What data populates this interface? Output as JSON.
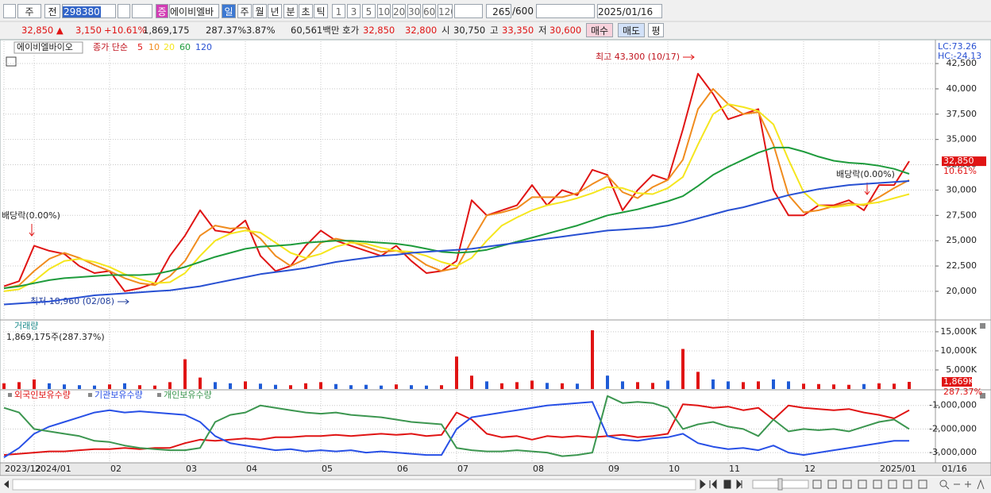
{
  "toolbar": {
    "market": "주",
    "prev": "전",
    "code": "298380",
    "badge": "증",
    "name": "에이비엘바",
    "periods": [
      "일",
      "주",
      "월",
      "년",
      "분",
      "초",
      "틱"
    ],
    "intervals": [
      "1",
      "3",
      "5",
      "10",
      "20",
      "30",
      "60",
      "120"
    ],
    "count": "265",
    "count_max": "/600",
    "date": "2025/01/16"
  },
  "quote": {
    "price": "32,850 ▲",
    "change": "3,150",
    "change_pct": "+10.61%",
    "volume": "1,869,175",
    "volume_pct": "287.37%",
    "turnover_pct": "3.87%",
    "amount": "60,561백만",
    "hoga_label": "호가",
    "ask": "32,850",
    "bid": "32,800",
    "open_label": "시",
    "open": "30,750",
    "high_label": "고",
    "high": "33,350",
    "low_label": "저",
    "low": "30,600",
    "buy": "매수",
    "sell": "매도",
    "avg": "평"
  },
  "chart_data": [
    {
      "type": "line",
      "stock_name": "에이비엘바이오",
      "ma_label": "종가 단순",
      "categories": [
        "2023/12",
        null,
        "2024/01",
        null,
        null,
        null,
        null,
        "02",
        null,
        null,
        null,
        null,
        "03",
        null,
        null,
        null,
        "04",
        null,
        null,
        null,
        null,
        "05",
        null,
        null,
        null,
        null,
        "06",
        null,
        null,
        null,
        "07",
        null,
        null,
        null,
        null,
        "08",
        null,
        null,
        null,
        null,
        "09",
        null,
        null,
        null,
        "10",
        null,
        null,
        null,
        "11",
        null,
        null,
        null,
        null,
        "12",
        null,
        null,
        null,
        null,
        "2025/01",
        null,
        null
      ],
      "last_date": "01/16",
      "series": [
        {
          "name": "5",
          "color": "#e01414",
          "values": [
            20500,
            21000,
            24500,
            24000,
            23700,
            22500,
            21800,
            22000,
            20000,
            20300,
            20800,
            23500,
            25500,
            28000,
            26000,
            25800,
            27000,
            23500,
            22000,
            22500,
            24500,
            26000,
            25000,
            24500,
            24000,
            23500,
            24500,
            23000,
            21800,
            22000,
            23000,
            29000,
            27500,
            28000,
            28500,
            30500,
            28500,
            30000,
            29500,
            32000,
            31500,
            28000,
            30000,
            31500,
            31000,
            36000,
            41500,
            39500,
            37000,
            37500,
            38000,
            30000,
            27500,
            27500,
            28500,
            28500,
            29000,
            28000,
            30500,
            30500,
            32850
          ]
        },
        {
          "name": "10",
          "color": "#f08c1e",
          "values": [
            20300,
            20600,
            22000,
            23200,
            23800,
            23300,
            22600,
            22000,
            21300,
            20800,
            20600,
            21500,
            23000,
            25500,
            26500,
            26200,
            26300,
            25200,
            23500,
            22500,
            23200,
            24800,
            25200,
            24900,
            24400,
            23900,
            24000,
            23600,
            22600,
            22000,
            22300,
            25000,
            27500,
            27800,
            28200,
            29300,
            29300,
            29300,
            29700,
            30600,
            31400,
            29800,
            29200,
            30300,
            31000,
            33000,
            38000,
            40000,
            38500,
            37500,
            37700,
            34500,
            29500,
            27800,
            28000,
            28400,
            28700,
            28500,
            29300,
            30200,
            31000
          ]
        },
        {
          "name": "20",
          "color": "#f5e61e",
          "values": [
            20000,
            20200,
            21000,
            22200,
            23000,
            23200,
            22900,
            22400,
            21700,
            21200,
            20800,
            20900,
            21800,
            23500,
            25000,
            25700,
            26000,
            25800,
            24800,
            23800,
            23300,
            23700,
            24400,
            24800,
            24700,
            24300,
            24000,
            23900,
            23500,
            22900,
            22500,
            23300,
            25000,
            26500,
            27300,
            28000,
            28500,
            28800,
            29200,
            29700,
            30300,
            30200,
            29700,
            29600,
            30200,
            31300,
            34500,
            37500,
            38500,
            38200,
            37800,
            36500,
            33000,
            29800,
            28500,
            28300,
            28500,
            28600,
            28800,
            29200,
            29600
          ]
        },
        {
          "name": "60",
          "color": "#1e9b3c",
          "values": [
            20300,
            20500,
            20800,
            21100,
            21300,
            21400,
            21500,
            21600,
            21600,
            21600,
            21700,
            22000,
            22400,
            22900,
            23400,
            23800,
            24200,
            24400,
            24500,
            24600,
            24800,
            24900,
            25000,
            25000,
            24900,
            24800,
            24700,
            24500,
            24200,
            23900,
            23800,
            23900,
            24100,
            24500,
            24900,
            25300,
            25700,
            26100,
            26500,
            27000,
            27500,
            27800,
            28100,
            28500,
            28900,
            29400,
            30400,
            31500,
            32300,
            33000,
            33700,
            34200,
            34200,
            33800,
            33300,
            32900,
            32700,
            32600,
            32400,
            32100,
            31600
          ]
        },
        {
          "name": "120",
          "color": "#2850d2",
          "values": [
            18700,
            18800,
            18900,
            19000,
            19200,
            19400,
            19600,
            19700,
            19800,
            19900,
            20000,
            20100,
            20300,
            20500,
            20800,
            21100,
            21400,
            21700,
            21900,
            22100,
            22300,
            22600,
            22900,
            23100,
            23300,
            23500,
            23600,
            23800,
            23900,
            24000,
            24100,
            24200,
            24400,
            24600,
            24800,
            25000,
            25200,
            25400,
            25600,
            25800,
            26000,
            26100,
            26200,
            26300,
            26500,
            26800,
            27200,
            27600,
            28000,
            28300,
            28700,
            29100,
            29500,
            29800,
            30100,
            30300,
            30500,
            30600,
            30700,
            30800,
            30900
          ]
        }
      ],
      "ylim": [
        17250,
        44700
      ],
      "yticks": [
        {
          "value": 20000,
          "label": "20,000"
        },
        {
          "value": 22500,
          "label": "22,500"
        },
        {
          "value": 25000,
          "label": "25,000"
        },
        {
          "value": 27500,
          "label": "27,500"
        },
        {
          "value": 30000,
          "label": "30,000"
        },
        {
          "value": 32500,
          "label": "32,500"
        },
        {
          "value": 35000,
          "label": "35,000"
        },
        {
          "value": 37500,
          "label": "37,500"
        },
        {
          "value": 40000,
          "label": "40,000"
        },
        {
          "value": 42500,
          "label": "42,500"
        }
      ],
      "grid": true,
      "high_note": "최고 43,300 (10/17)",
      "low_note": "최저 18,960 (02/08)",
      "dividend_notes": [
        "배당락(0.00%)",
        "배당락(0.00%)"
      ],
      "lc": "LC:73.26",
      "hc": "HC:-24.13",
      "last_price_label": "32,850",
      "last_change_label": "10.61%"
    },
    {
      "type": "bar",
      "title": "거래량",
      "subtitle": "1,869,175주(287.37%)",
      "up_color": "#e01414",
      "down_color": "#1f5bd6",
      "values": [
        1500,
        1800,
        2500,
        1500,
        1200,
        1000,
        900,
        1200,
        1500,
        1000,
        900,
        1800,
        7800,
        3000,
        1800,
        1500,
        2000,
        1400,
        1100,
        1000,
        1500,
        1800,
        1300,
        1000,
        1100,
        900,
        1200,
        1000,
        900,
        1000,
        8500,
        3500,
        2000,
        1500,
        1800,
        2200,
        1600,
        1500,
        1400,
        15400,
        3500,
        2000,
        1800,
        1600,
        2200,
        10500,
        4500,
        2500,
        2000,
        1800,
        2000,
        2500,
        2000,
        1400,
        1300,
        1200,
        1100,
        1300,
        1500,
        1400,
        1869
      ],
      "ylim": [
        0,
        17900
      ],
      "yticks": [
        {
          "value": 5000,
          "label": "5,000K"
        },
        {
          "value": 10000,
          "label": "10,000K"
        },
        {
          "value": 15000,
          "label": "15,000K"
        }
      ],
      "grid": true,
      "last_label": "1,869K",
      "last_pct": "287.37%"
    },
    {
      "type": "line",
      "series": [
        {
          "name": "외국인보유수량",
          "color": "#e01414",
          "values": [
            -3100000,
            -3050000,
            -3000000,
            -2950000,
            -2950000,
            -2900000,
            -2850000,
            -2850000,
            -2800000,
            -2850000,
            -2800000,
            -2800000,
            -2600000,
            -2450000,
            -2500000,
            -2450000,
            -2400000,
            -2450000,
            -2350000,
            -2350000,
            -2300000,
            -2300000,
            -2250000,
            -2300000,
            -2250000,
            -2200000,
            -2250000,
            -2200000,
            -2300000,
            -2250000,
            -1300000,
            -1600000,
            -2200000,
            -2350000,
            -2300000,
            -2450000,
            -2300000,
            -2350000,
            -2300000,
            -2350000,
            -2300000,
            -2250000,
            -2350000,
            -2300000,
            -2200000,
            -950000,
            -1000000,
            -1100000,
            -1050000,
            -1200000,
            -1100000,
            -1600000,
            -1000000,
            -1100000,
            -1150000,
            -1200000,
            -1150000,
            -1300000,
            -1400000,
            -1550000,
            -1200000
          ]
        },
        {
          "name": "기관보유수량",
          "color": "#2850e6",
          "values": [
            -3200000,
            -2800000,
            -2200000,
            -1900000,
            -1700000,
            -1500000,
            -1300000,
            -1200000,
            -1300000,
            -1250000,
            -1300000,
            -1350000,
            -1400000,
            -1700000,
            -2300000,
            -2600000,
            -2700000,
            -2800000,
            -2900000,
            -2850000,
            -2950000,
            -2900000,
            -2950000,
            -2900000,
            -3000000,
            -2950000,
            -3000000,
            -3050000,
            -3100000,
            -3100000,
            -2000000,
            -1500000,
            -1400000,
            -1300000,
            -1200000,
            -1100000,
            -1000000,
            -950000,
            -900000,
            -850000,
            -2300000,
            -2450000,
            -2500000,
            -2400000,
            -2350000,
            -2200000,
            -2600000,
            -2750000,
            -2850000,
            -2800000,
            -2900000,
            -2700000,
            -3000000,
            -3100000,
            -3000000,
            -2900000,
            -2800000,
            -2700000,
            -2600000,
            -2500000,
            -2500000
          ]
        },
        {
          "name": "개인보유수량",
          "color": "#3c9650",
          "values": [
            -1100000,
            -1300000,
            -2000000,
            -2100000,
            -2200000,
            -2300000,
            -2500000,
            -2550000,
            -2700000,
            -2800000,
            -2850000,
            -2900000,
            -2900000,
            -2800000,
            -1700000,
            -1400000,
            -1300000,
            -1000000,
            -1100000,
            -1200000,
            -1300000,
            -1350000,
            -1300000,
            -1400000,
            -1450000,
            -1500000,
            -1600000,
            -1700000,
            -1750000,
            -1800000,
            -2800000,
            -2900000,
            -2950000,
            -2950000,
            -2900000,
            -2950000,
            -3000000,
            -3150000,
            -3100000,
            -3000000,
            -600000,
            -900000,
            -850000,
            -900000,
            -1100000,
            -2000000,
            -1800000,
            -1700000,
            -1900000,
            -2000000,
            -2300000,
            -1600000,
            -2100000,
            -2000000,
            -2050000,
            -2000000,
            -2100000,
            -1900000,
            -1700000,
            -1600000,
            -2000000
          ]
        }
      ],
      "ylim": [
        -3400000,
        -370000
      ],
      "yticks": [
        {
          "value": -3000000,
          "label": "-3,000,000"
        },
        {
          "value": -2000000,
          "label": "-2,000,000"
        },
        {
          "value": -1000000,
          "label": "-1,000,000"
        }
      ],
      "grid": true
    }
  ]
}
